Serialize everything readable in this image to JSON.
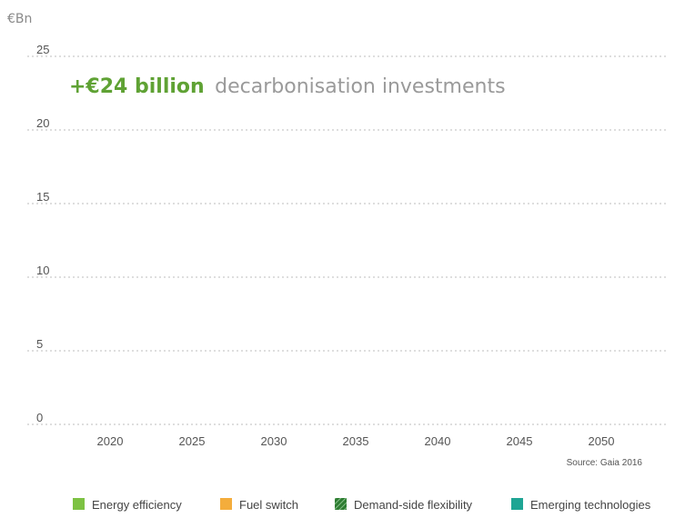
{
  "chart_data": {
    "type": "bar",
    "unit_label": "€Bn",
    "headline_strong": "+€24 billion",
    "headline_rest": "decarbonisation investments",
    "categories": [
      "2020",
      "2025",
      "2030",
      "2035",
      "2040",
      "2045",
      "2050"
    ],
    "ylim": [
      0,
      25
    ],
    "yticks": [
      "0",
      "5",
      "10",
      "15",
      "20",
      "25"
    ],
    "grid": true,
    "legend_position": "bottom",
    "source": "Source: Gaia 2016",
    "series": [
      {
        "name": "Energy efficiency",
        "color": "#7dc243",
        "pattern": "solid",
        "values": [
          0,
          0,
          0,
          0,
          0,
          0,
          0
        ]
      },
      {
        "name": "Fuel switch",
        "color": "#f4ad3c",
        "pattern": "solid",
        "values": [
          0,
          0,
          0,
          0,
          0,
          0,
          0
        ]
      },
      {
        "name": "Demand-side flexibility",
        "color": "#2e7d32",
        "pattern": "hatched",
        "values": [
          0,
          0,
          0,
          0,
          0,
          0,
          0
        ]
      },
      {
        "name": "Emerging technologies",
        "color": "#1fa594",
        "pattern": "solid",
        "values": [
          0,
          0,
          0,
          0,
          0,
          0,
          0
        ]
      }
    ]
  }
}
